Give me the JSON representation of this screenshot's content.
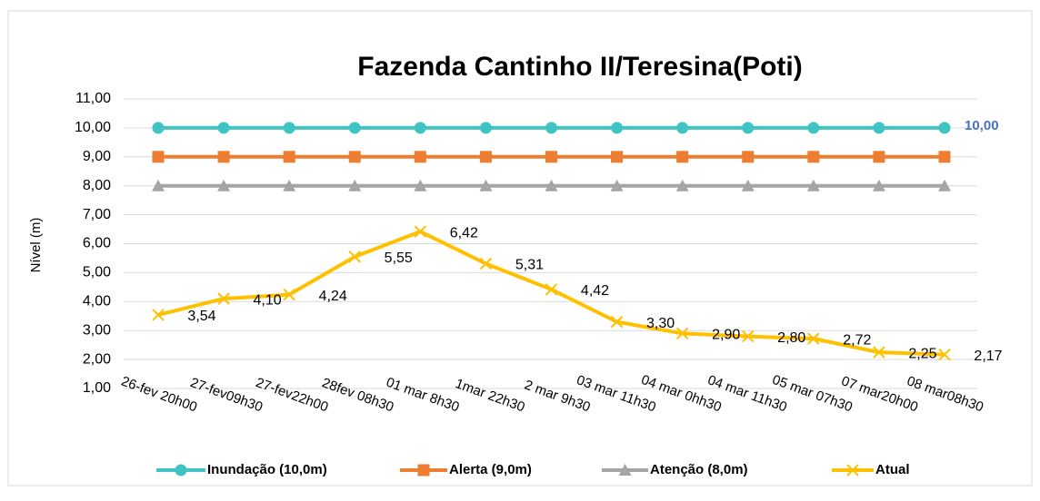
{
  "chart_data": {
    "type": "line",
    "title": "Fazenda Cantinho II/Teresina(Poti)",
    "y_label": "Nível (m)",
    "categories": [
      "26-fev 20h00",
      "27-fev09h30",
      "27-fev22h00",
      "28fev 08h30",
      "01 mar 8h30",
      "1mar 22h30",
      "2 mar 9h30",
      "03 mar 11h30",
      "04 mar 0hh30",
      "04 mar 11h30",
      "05 mar 07h30",
      "07 mar20h00",
      "08 mar08h30"
    ],
    "series": [
      {
        "name": "Inundação (10,0m)",
        "color": "#3fc4c4",
        "marker": "circle",
        "values": [
          10,
          10,
          10,
          10,
          10,
          10,
          10,
          10,
          10,
          10,
          10,
          10,
          10
        ],
        "value_labels": [
          null,
          null,
          null,
          null,
          null,
          null,
          null,
          null,
          null,
          null,
          null,
          null,
          "10,00"
        ]
      },
      {
        "name": "Alerta (9,0m)",
        "color": "#ed7d31",
        "marker": "square",
        "values": [
          9,
          9,
          9,
          9,
          9,
          9,
          9,
          9,
          9,
          9,
          9,
          9,
          9
        ]
      },
      {
        "name": "Atenção (8,0m)",
        "color": "#a5a5a5",
        "marker": "triangle",
        "values": [
          8,
          8,
          8,
          8,
          8,
          8,
          8,
          8,
          8,
          8,
          8,
          8,
          8
        ]
      },
      {
        "name": "Atual",
        "color": "#ffc000",
        "marker": "x",
        "values": [
          3.54,
          4.1,
          4.24,
          5.55,
          6.42,
          5.31,
          4.42,
          3.3,
          2.9,
          2.8,
          2.72,
          2.25,
          2.17
        ],
        "value_labels": [
          "3,54",
          "4,10",
          "4,24",
          "5,55",
          "6,42",
          "5,31",
          "4,42",
          "3,30",
          "2,90",
          "2,80",
          "2,72",
          "2,25",
          "2,17"
        ]
      }
    ],
    "ylim": [
      1,
      11
    ],
    "yticks": [
      {
        "value": 1,
        "label": "1,00"
      },
      {
        "value": 2,
        "label": "2,00"
      },
      {
        "value": 3,
        "label": "3,00"
      },
      {
        "value": 4,
        "label": "4,00"
      },
      {
        "value": 5,
        "label": "5,00"
      },
      {
        "value": 6,
        "label": "6,00"
      },
      {
        "value": 7,
        "label": "7,00"
      },
      {
        "value": 8,
        "label": "8,00"
      },
      {
        "value": 9,
        "label": "9,00"
      },
      {
        "value": 10,
        "label": "10,00"
      },
      {
        "value": 11,
        "label": "11,00"
      }
    ],
    "grid": true,
    "legend": "bottom"
  }
}
